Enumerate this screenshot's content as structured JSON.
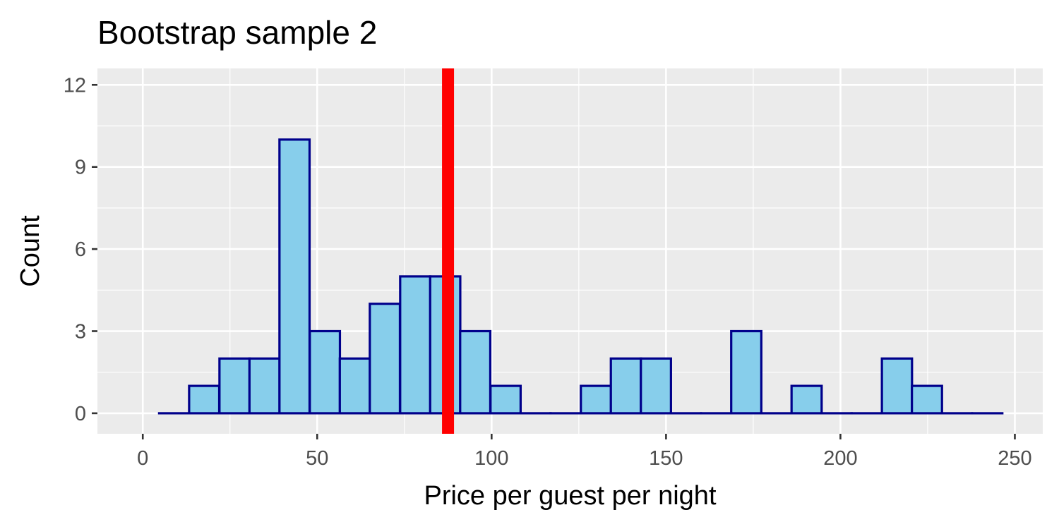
{
  "chart_data": {
    "type": "bar",
    "title": "Bootstrap sample 2",
    "xlabel": "Price per guest per night",
    "ylabel": "Count",
    "xlim": [
      -13,
      258
    ],
    "ylim": [
      -0.75,
      12.6
    ],
    "x_ticks": [
      0,
      50,
      100,
      150,
      200,
      250
    ],
    "x_tick_labels": [
      "0",
      "50",
      "100",
      "150",
      "200",
      "250"
    ],
    "y_ticks": [
      0,
      3,
      6,
      9,
      12
    ],
    "y_tick_labels": [
      "0",
      "3",
      "6",
      "9",
      "12"
    ],
    "bin_width": 8.63,
    "bin_centers": [
      9.0,
      17.6,
      26.3,
      34.9,
      43.5,
      52.2,
      60.8,
      69.4,
      78.1,
      86.7,
      95.3,
      104.0,
      112.6,
      121.2,
      129.9,
      138.5,
      147.1,
      155.7,
      164.4,
      173.0,
      181.6,
      190.3,
      198.9,
      207.5,
      216.2,
      224.8,
      233.4,
      242.1
    ],
    "counts": [
      0,
      1,
      2,
      2,
      10,
      3,
      2,
      4,
      5,
      5,
      3,
      1,
      0,
      0,
      1,
      2,
      2,
      0,
      0,
      3,
      0,
      1,
      0,
      0,
      2,
      1,
      0,
      0
    ],
    "vline": {
      "x": 87.5,
      "color": "#ff0000"
    },
    "colors": {
      "bar_fill": "#87ceeb",
      "bar_outline": "#00008b",
      "panel_background": "#ebebeb",
      "grid": "#ffffff",
      "tick_text": "#4d4d4d"
    },
    "grid": true,
    "legend": "none"
  }
}
